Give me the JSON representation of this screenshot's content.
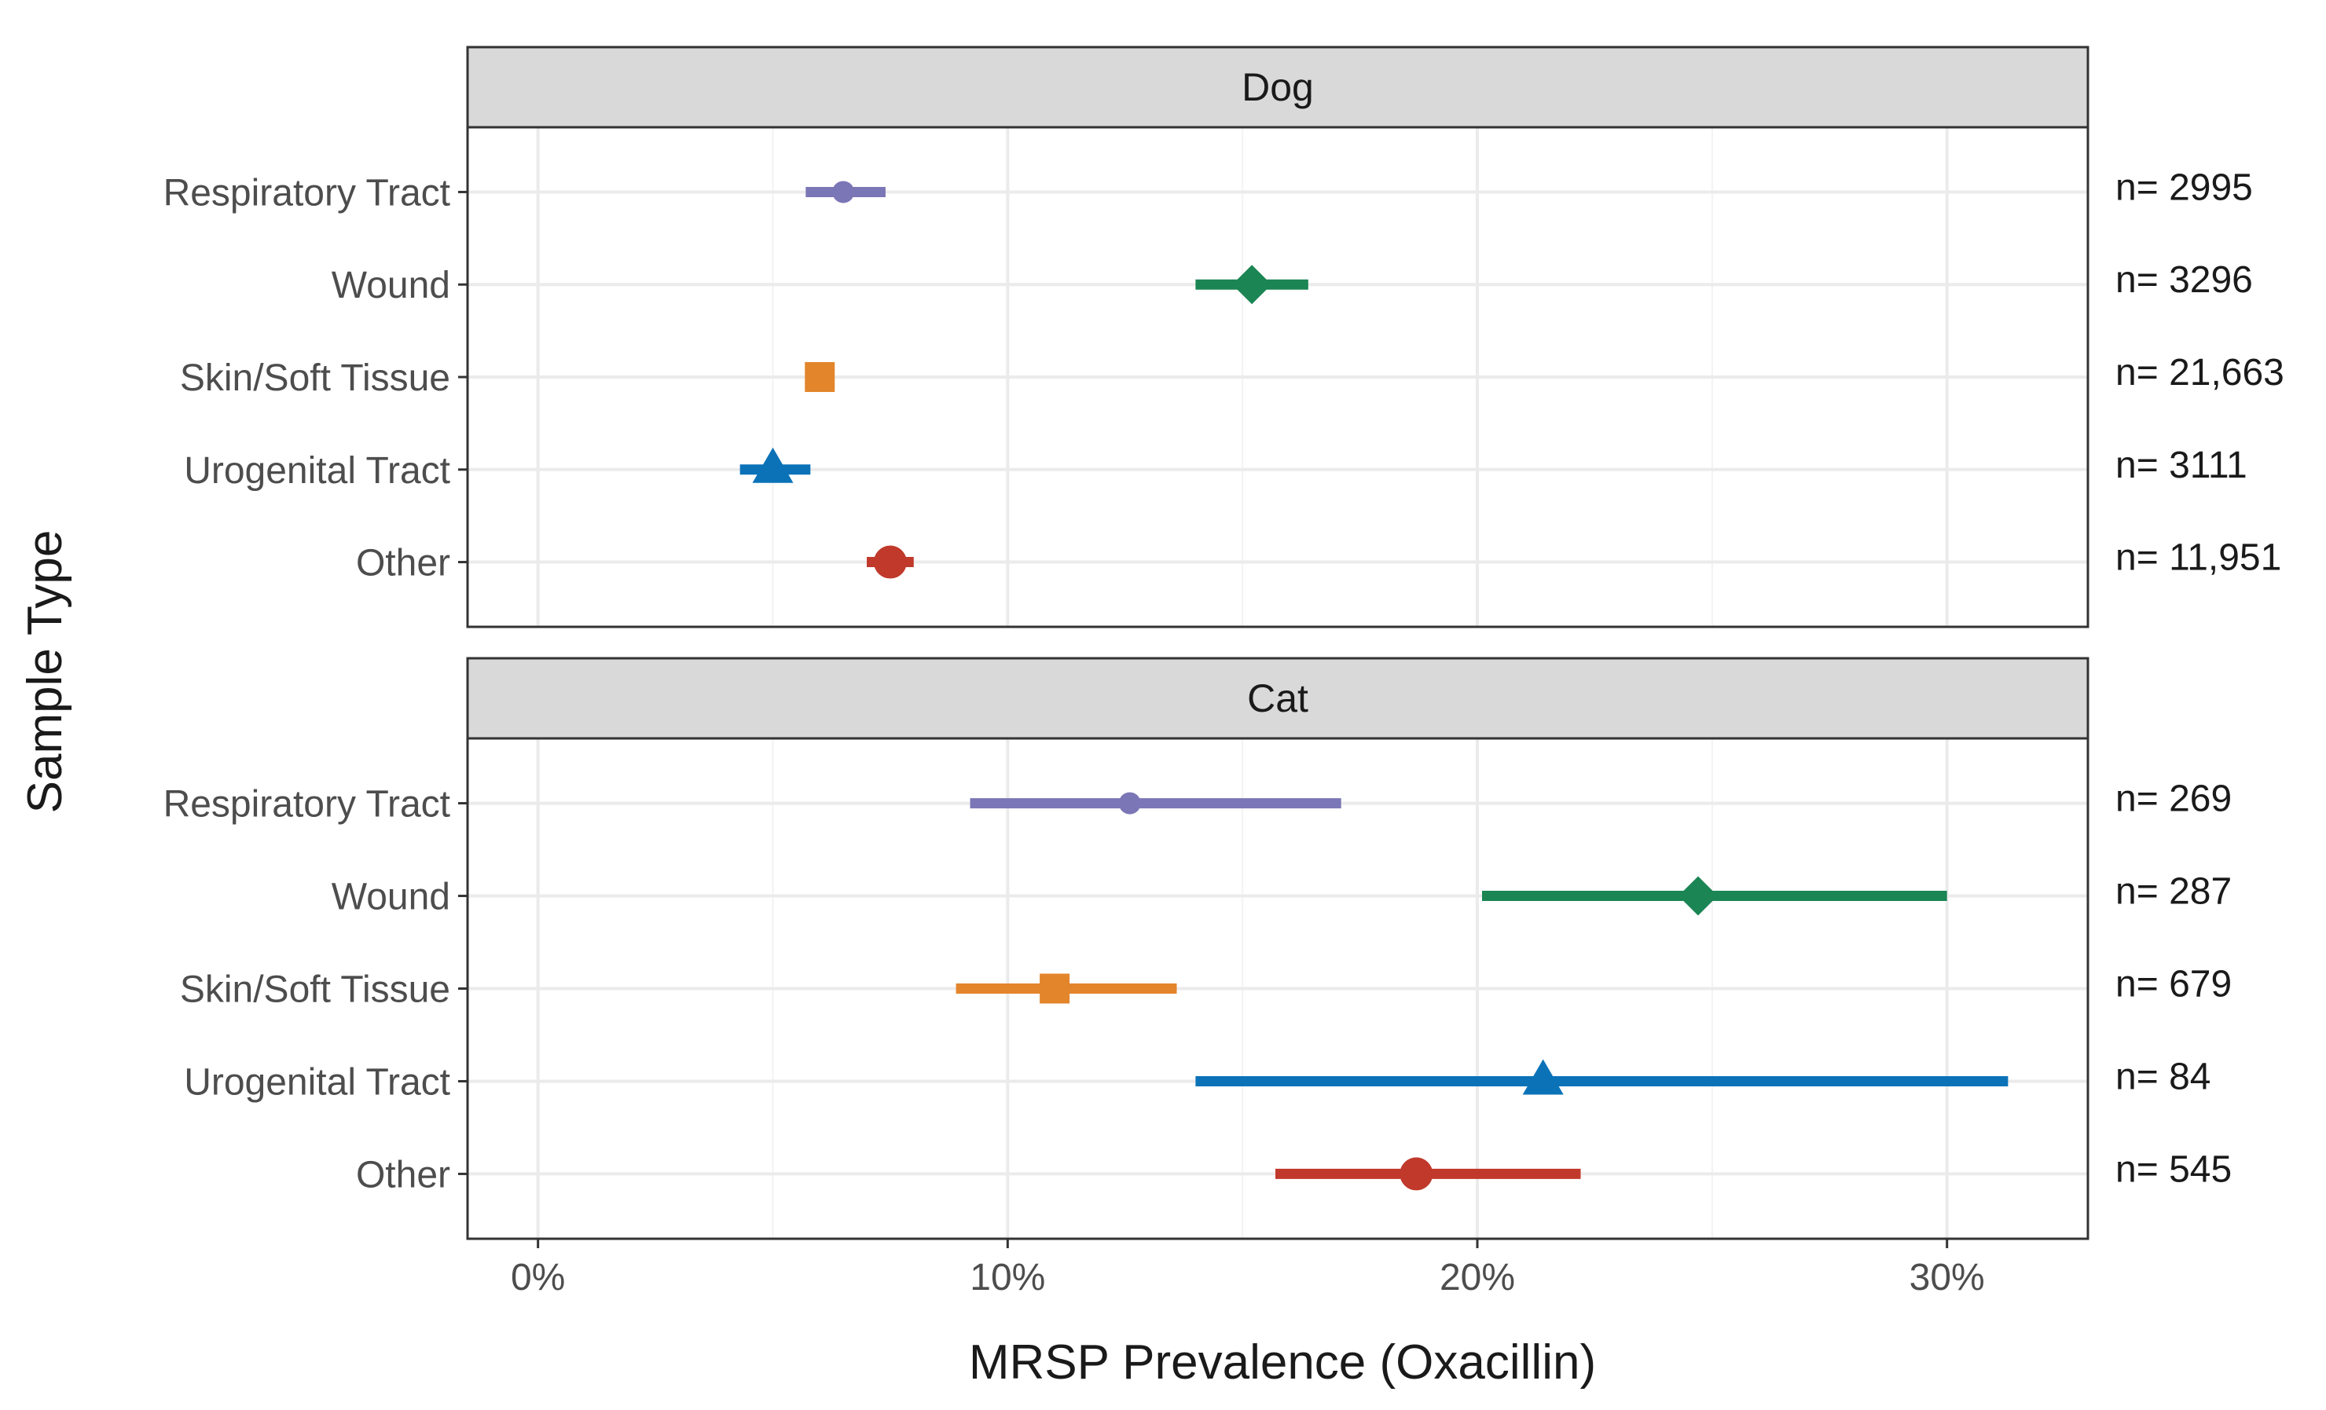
{
  "chart_data": {
    "type": "forest",
    "xlabel": "MRSP Prevalence (Oxacillin)",
    "ylabel": "Sample Type",
    "xlim": [
      -0.015,
      0.33
    ],
    "x_ticks": [
      0,
      0.1,
      0.2,
      0.3
    ],
    "x_tick_labels": [
      "0%",
      "10%",
      "20%",
      "30%"
    ],
    "grid": true,
    "categories": [
      "Respiratory Tract",
      "Wound",
      "Skin/Soft Tissue",
      "Urogenital Tract",
      "Other"
    ],
    "category_colors": [
      "#7b76b6",
      "#1b8553",
      "#e3852b",
      "#0b72b8",
      "#c0392b"
    ],
    "category_shapes": [
      "circle-small",
      "diamond",
      "square",
      "triangle",
      "circle"
    ],
    "panels": [
      {
        "name": "Dog",
        "points": [
          {
            "category": "Respiratory Tract",
            "estimate": 0.065,
            "lower": 0.057,
            "upper": 0.074,
            "n_label": "n= 2995"
          },
          {
            "category": "Wound",
            "estimate": 0.152,
            "lower": 0.14,
            "upper": 0.164,
            "n_label": "n= 3296"
          },
          {
            "category": "Skin/Soft Tissue",
            "estimate": 0.06,
            "lower": 0.057,
            "upper": 0.063,
            "n_label": "n= 21,663"
          },
          {
            "category": "Urogenital Tract",
            "estimate": 0.05,
            "lower": 0.043,
            "upper": 0.058,
            "n_label": "n= 3111"
          },
          {
            "category": "Other",
            "estimate": 0.075,
            "lower": 0.07,
            "upper": 0.08,
            "n_label": "n= 11,951"
          }
        ]
      },
      {
        "name": "Cat",
        "points": [
          {
            "category": "Respiratory Tract",
            "estimate": 0.126,
            "lower": 0.092,
            "upper": 0.171,
            "n_label": "n= 269"
          },
          {
            "category": "Wound",
            "estimate": 0.247,
            "lower": 0.201,
            "upper": 0.3,
            "n_label": "n= 287"
          },
          {
            "category": "Skin/Soft Tissue",
            "estimate": 0.11,
            "lower": 0.089,
            "upper": 0.136,
            "n_label": "n= 679"
          },
          {
            "category": "Urogenital Tract",
            "estimate": 0.214,
            "lower": 0.14,
            "upper": 0.313,
            "n_label": "n= 84"
          },
          {
            "category": "Other",
            "estimate": 0.187,
            "lower": 0.157,
            "upper": 0.222,
            "n_label": "n= 545"
          }
        ]
      }
    ]
  }
}
